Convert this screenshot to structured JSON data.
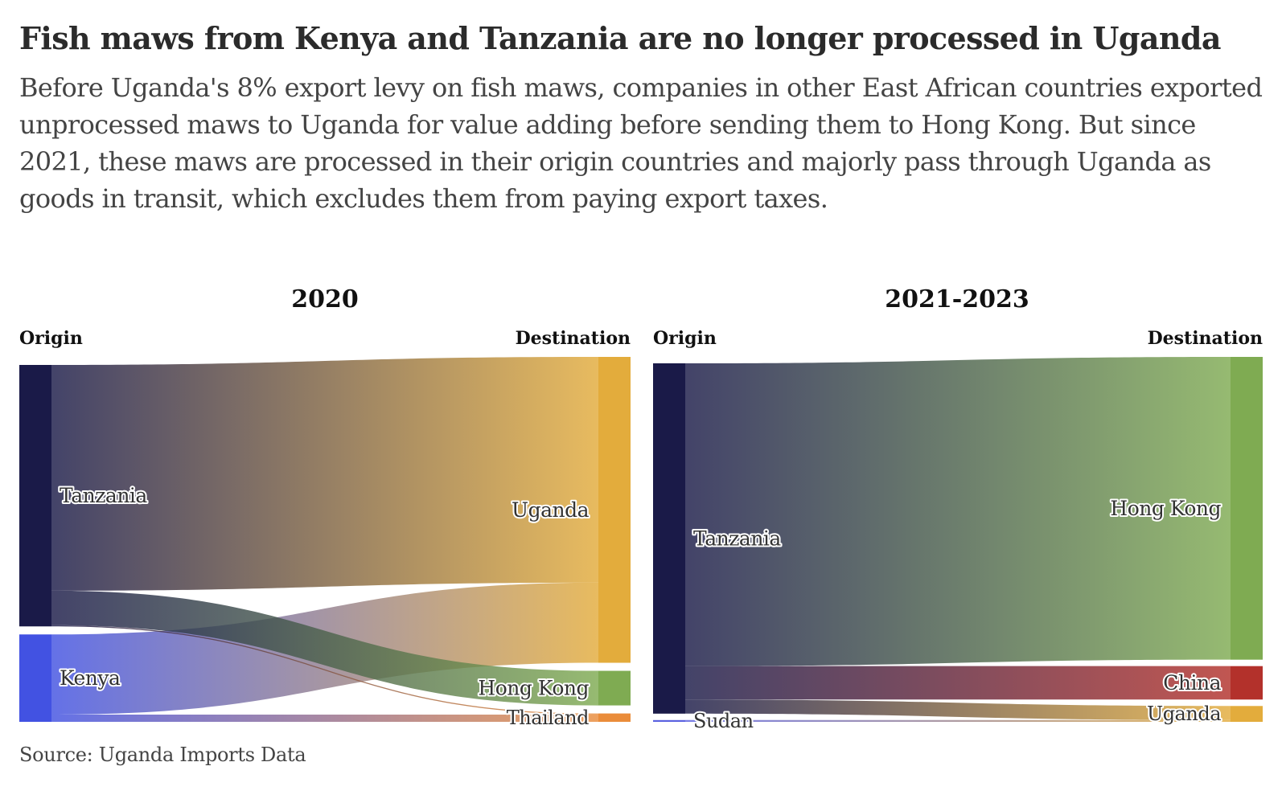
{
  "header": {
    "title": "Fish maws from Kenya and Tanzania are no longer processed in Uganda",
    "subtitle": "Before Uganda's 8% export levy on fish maws, companies in other East African countries exported unprocessed maws to Uganda for value adding before sending them to Hong Kong. But since 2021, these maws are processed in their origin countries and majorly pass through Uganda as goods in transit, which excludes them from paying export taxes."
  },
  "footer": {
    "source": "Source: Uganda Imports Data"
  },
  "chart_data": [
    {
      "type": "sankey",
      "title": "2020",
      "origin_header": "Origin",
      "destination_header": "Destination",
      "origins": [
        {
          "name": "Tanzania",
          "color": "#1a1a48"
        },
        {
          "name": "Kenya",
          "color": "#4252e2"
        }
      ],
      "destinations": [
        {
          "name": "Uganda",
          "color": "#e3ac3c"
        },
        {
          "name": "Hong Kong",
          "color": "#7fab52"
        },
        {
          "name": "Thailand",
          "color": "#ea8c3a"
        }
      ],
      "flows": [
        {
          "from": "Tanzania",
          "to": "Uganda",
          "value": 62
        },
        {
          "from": "Tanzania",
          "to": "Hong Kong",
          "value": 9.5
        },
        {
          "from": "Tanzania",
          "to": "Thailand",
          "value": 0.3
        },
        {
          "from": "Kenya",
          "to": "Uganda",
          "value": 22
        },
        {
          "from": "Kenya",
          "to": "Thailand",
          "value": 2
        }
      ]
    },
    {
      "type": "sankey",
      "title": "2021-2023",
      "origin_header": "Origin",
      "destination_header": "Destination",
      "origins": [
        {
          "name": "Tanzania",
          "color": "#1a1a48"
        },
        {
          "name": "Sudan",
          "color": "#5b62e0"
        }
      ],
      "destinations": [
        {
          "name": "Hong Kong",
          "color": "#7fab52"
        },
        {
          "name": "China",
          "color": "#b3312b"
        },
        {
          "name": "Uganda",
          "color": "#e3ac3c"
        }
      ],
      "flows": [
        {
          "from": "Tanzania",
          "to": "Hong Kong",
          "value": 86
        },
        {
          "from": "Tanzania",
          "to": "China",
          "value": 9.5
        },
        {
          "from": "Tanzania",
          "to": "Uganda",
          "value": 4
        },
        {
          "from": "Sudan",
          "to": "Uganda",
          "value": 0.5
        }
      ]
    }
  ]
}
